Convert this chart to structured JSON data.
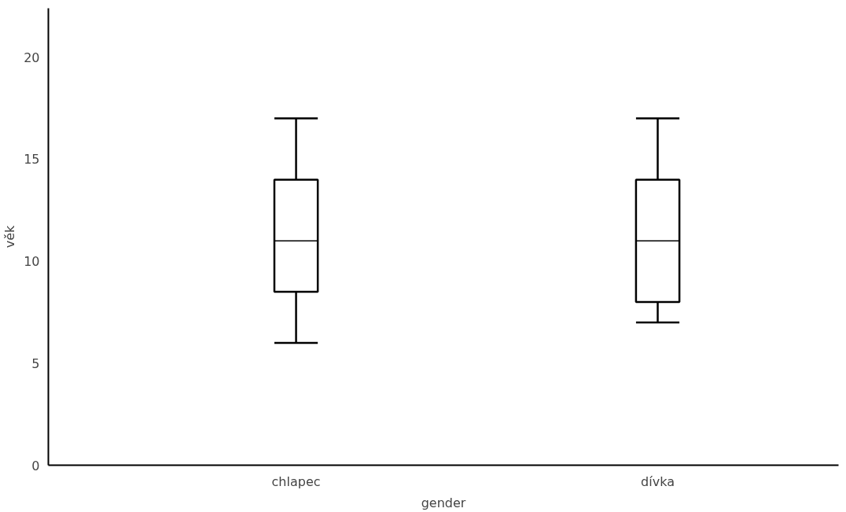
{
  "chart_data": {
    "type": "box",
    "xlabel": "gender",
    "ylabel": "věk",
    "categories": [
      "chlapec",
      "dívka"
    ],
    "boxes": [
      {
        "low": 6,
        "q1": 8.5,
        "median": 11,
        "q3": 14,
        "high": 17
      },
      {
        "low": 7,
        "q1": 8,
        "median": 11,
        "q3": 14,
        "high": 17
      }
    ],
    "ylim": [
      0,
      22.4
    ],
    "yticks": [
      0,
      5,
      10,
      15,
      20
    ],
    "grid": false
  }
}
